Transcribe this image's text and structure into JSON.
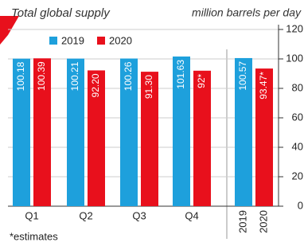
{
  "chart_data": {
    "type": "bar",
    "title": "Total global supply",
    "y_axis_label": "million barrels per day",
    "categories": [
      "Q1",
      "Q2",
      "Q3",
      "Q4",
      null
    ],
    "series": [
      {
        "name": "2019",
        "color": "#1ea0dc",
        "values": [
          100.18,
          100.21,
          100.26,
          101.63,
          100.57
        ]
      },
      {
        "name": "2020",
        "color": "#e8101c",
        "values": [
          100.39,
          92.2,
          91.3,
          92,
          93.47
        ],
        "value_labels": [
          "100.39",
          "92.20",
          "91.30",
          "92*",
          "93.47*"
        ]
      }
    ],
    "ylim": [
      0,
      120
    ],
    "yticks": [
      0,
      20,
      40,
      60,
      80,
      100,
      120
    ],
    "grid": true,
    "footnote": "*estimates"
  }
}
